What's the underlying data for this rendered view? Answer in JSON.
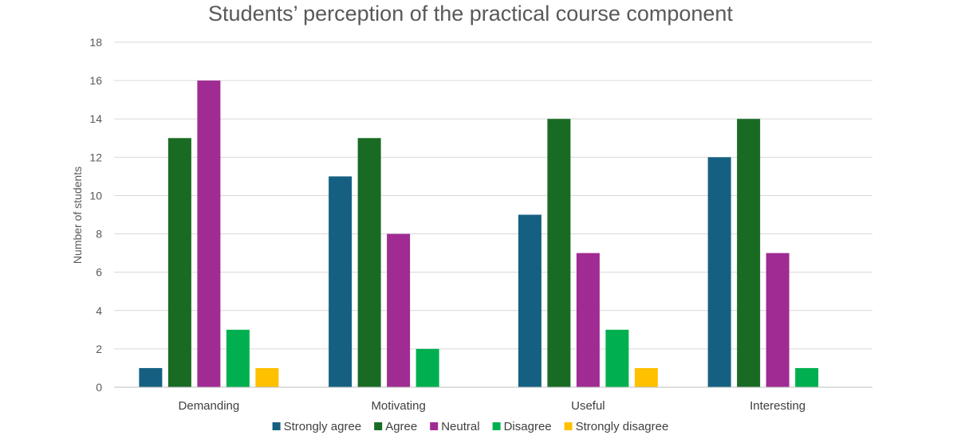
{
  "chart_data": {
    "type": "bar",
    "title": "Students’ perception of the practical course component",
    "xlabel": "",
    "ylabel": "Number of students",
    "ylim": [
      0,
      18
    ],
    "yticks": [
      0,
      2,
      4,
      6,
      8,
      10,
      12,
      14,
      16,
      18
    ],
    "grid": true,
    "legend": "bottom",
    "categories": [
      "Demanding",
      "Motivating",
      "Useful",
      "Interesting"
    ],
    "series": [
      {
        "name": "Strongly agree",
        "color": "#156082",
        "values": [
          1,
          11,
          9,
          12
        ]
      },
      {
        "name": "Agree",
        "color": "#196B24",
        "values": [
          13,
          13,
          14,
          14
        ]
      },
      {
        "name": "Neutral",
        "color": "#A02B93",
        "values": [
          16,
          8,
          7,
          7
        ]
      },
      {
        "name": "Disagree",
        "color": "#00B050",
        "values": [
          3,
          2,
          3,
          1
        ]
      },
      {
        "name": "Strongly disagree",
        "color": "#FFC000",
        "values": [
          1,
          0,
          1,
          0
        ]
      }
    ]
  }
}
